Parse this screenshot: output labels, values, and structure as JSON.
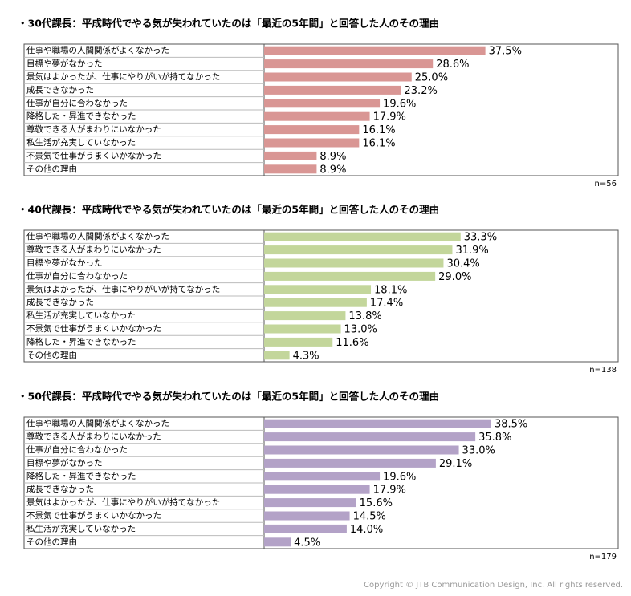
{
  "chart_data": [
    {
      "type": "bar",
      "orientation": "horizontal",
      "title": "・30代課長：平成時代でやる気が失われていたのは「最近の5年間」と回答した人のその理由",
      "note": "n=56",
      "color": "#d99694",
      "xlim": [
        0,
        60
      ],
      "categories": [
        "仕事や職場の人間関係がよくなかった",
        "目標や夢がなかった",
        "景気はよかったが、仕事にやりがいが持てなかった",
        "成長できなかった",
        "仕事が自分に合わなかった",
        "降格した・昇進できなかった",
        "尊敬できる人がまわりにいなかった",
        "私生活が充実していなかった",
        "不景気で仕事がうまくいかなかった",
        "その他の理由"
      ],
      "values": [
        37.5,
        28.6,
        25.0,
        23.2,
        19.6,
        17.9,
        16.1,
        16.1,
        8.9,
        8.9
      ],
      "value_labels": [
        "37.5%",
        "28.6%",
        "25.0%",
        "23.2%",
        "19.6%",
        "17.9%",
        "16.1%",
        "16.1%",
        "8.9%",
        "8.9%"
      ]
    },
    {
      "type": "bar",
      "orientation": "horizontal",
      "title": "・40代課長：平成時代でやる気が失われていたのは「最近の5年間」と回答した人のその理由",
      "note": "n=138",
      "color": "#c3d69b",
      "xlim": [
        0,
        60
      ],
      "categories": [
        "仕事や職場の人間関係がよくなかった",
        "尊敬できる人がまわりにいなかった",
        "目標や夢がなかった",
        "仕事が自分に合わなかった",
        "景気はよかったが、仕事にやりがいが持てなかった",
        "成長できなかった",
        "私生活が充実していなかった",
        "不景気で仕事がうまくいかなかった",
        "降格した・昇進できなかった",
        "その他の理由"
      ],
      "values": [
        33.3,
        31.9,
        30.4,
        29.0,
        18.1,
        17.4,
        13.8,
        13.0,
        11.6,
        4.3
      ],
      "value_labels": [
        "33.3%",
        "31.9%",
        "30.4%",
        "29.0%",
        "18.1%",
        "17.4%",
        "13.8%",
        "13.0%",
        "11.6%",
        "4.3%"
      ]
    },
    {
      "type": "bar",
      "orientation": "horizontal",
      "title": "・50代課長：平成時代でやる気が失われていたのは「最近の5年間」と回答した人のその理由",
      "note": "n=179",
      "color": "#b3a2c7",
      "xlim": [
        0,
        60
      ],
      "categories": [
        "仕事や職場の人間関係がよくなかった",
        "尊敬できる人がまわりにいなかった",
        "仕事が自分に合わなかった",
        "目標や夢がなかった",
        "降格した・昇進できなかった",
        "成長できなかった",
        "景気はよかったが、仕事にやりがいが持てなかった",
        "不景気で仕事がうまくいかなかった",
        "私生活が充実していなかった",
        "その他の理由"
      ],
      "values": [
        38.5,
        35.8,
        33.0,
        29.1,
        19.6,
        17.9,
        15.6,
        14.5,
        14.0,
        4.5
      ],
      "value_labels": [
        "38.5%",
        "35.8%",
        "33.0%",
        "29.1%",
        "19.6%",
        "17.9%",
        "15.6%",
        "14.5%",
        "14.0%",
        "4.5%"
      ]
    }
  ],
  "copyright": "Copyright © JTB Communication Design, Inc. All rights reserved."
}
